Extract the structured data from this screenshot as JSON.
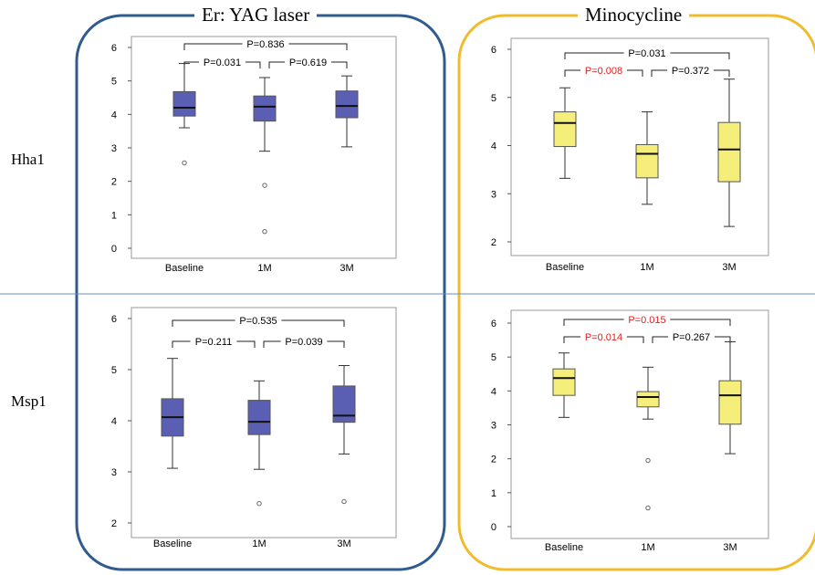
{
  "groups": [
    {
      "title": "Er: YAG laser",
      "border_color": "#2f5b8e",
      "box_color": "#5b5fb4"
    },
    {
      "title": "Minocycline",
      "border_color": "#f0bc2d",
      "box_color": "#f5ee7a"
    }
  ],
  "rows": [
    "Hha1",
    "Msp1"
  ],
  "significant_color": "#e02020",
  "chart_data": [
    {
      "type": "boxplot",
      "group": "Er: YAG laser",
      "row": "Hha1",
      "categories": [
        "Baseline",
        "1M",
        "3M"
      ],
      "yticks": [
        "0",
        "1",
        "2",
        "3",
        "4",
        "5",
        "6"
      ],
      "ylim": [
        0,
        6
      ],
      "boxes": [
        {
          "min": 3.6,
          "q1": 3.95,
          "median": 4.2,
          "q3": 4.68,
          "max": 5.52,
          "outliers": [
            2.55
          ]
        },
        {
          "min": 2.9,
          "q1": 3.8,
          "median": 4.23,
          "q3": 4.55,
          "max": 5.1,
          "outliers": [
            1.88,
            0.5
          ]
        },
        {
          "min": 3.03,
          "q1": 3.9,
          "median": 4.25,
          "q3": 4.7,
          "max": 5.15,
          "outliers": []
        }
      ],
      "comparisons": [
        {
          "from": 0,
          "to": 2,
          "label": "P=0.836",
          "significant": false
        },
        {
          "from": 0,
          "to": 1,
          "label": "P=0.031",
          "significant": false
        },
        {
          "from": 1,
          "to": 2,
          "label": "P=0.619",
          "significant": false
        }
      ]
    },
    {
      "type": "boxplot",
      "group": "Minocycline",
      "row": "Hha1",
      "categories": [
        "Baseline",
        "1M",
        "3M"
      ],
      "yticks": [
        "2",
        "3",
        "4",
        "5",
        "6"
      ],
      "ylim": [
        2,
        6
      ],
      "boxes": [
        {
          "min": 3.32,
          "q1": 3.98,
          "median": 4.47,
          "q3": 4.7,
          "max": 5.2,
          "outliers": []
        },
        {
          "min": 2.78,
          "q1": 3.33,
          "median": 3.83,
          "q3": 4.02,
          "max": 4.7,
          "outliers": []
        },
        {
          "min": 2.32,
          "q1": 3.25,
          "median": 3.92,
          "q3": 4.48,
          "max": 5.38,
          "outliers": []
        }
      ],
      "comparisons": [
        {
          "from": 0,
          "to": 2,
          "label": "P=0.031",
          "significant": false
        },
        {
          "from": 0,
          "to": 1,
          "label": "P=0.008",
          "significant": true
        },
        {
          "from": 1,
          "to": 2,
          "label": "P=0.372",
          "significant": false
        }
      ]
    },
    {
      "type": "boxplot",
      "group": "Er: YAG laser",
      "row": "Msp1",
      "categories": [
        "Baseline",
        "1M",
        "3M"
      ],
      "yticks": [
        "2",
        "3",
        "4",
        "5",
        "6"
      ],
      "ylim": [
        2,
        6
      ],
      "boxes": [
        {
          "min": 3.07,
          "q1": 3.7,
          "median": 4.07,
          "q3": 4.43,
          "max": 5.22,
          "outliers": []
        },
        {
          "min": 3.05,
          "q1": 3.73,
          "median": 3.98,
          "q3": 4.4,
          "max": 4.78,
          "outliers": [
            2.38
          ]
        },
        {
          "min": 3.35,
          "q1": 3.97,
          "median": 4.1,
          "q3": 4.68,
          "max": 5.08,
          "outliers": [
            2.42
          ]
        }
      ],
      "comparisons": [
        {
          "from": 0,
          "to": 2,
          "label": "P=0.535",
          "significant": false
        },
        {
          "from": 0,
          "to": 1,
          "label": "P=0.211",
          "significant": false
        },
        {
          "from": 1,
          "to": 2,
          "label": "P=0.039",
          "significant": false
        }
      ]
    },
    {
      "type": "boxplot",
      "group": "Minocycline",
      "row": "Msp1",
      "categories": [
        "Baseline",
        "1M",
        "3M"
      ],
      "yticks": [
        "0",
        "1",
        "2",
        "3",
        "4",
        "5",
        "6"
      ],
      "ylim": [
        0,
        6
      ],
      "boxes": [
        {
          "min": 3.22,
          "q1": 3.87,
          "median": 4.38,
          "q3": 4.65,
          "max": 5.12,
          "outliers": []
        },
        {
          "min": 3.17,
          "q1": 3.53,
          "median": 3.82,
          "q3": 3.98,
          "max": 4.7,
          "outliers": [
            1.95,
            0.55
          ]
        },
        {
          "min": 2.15,
          "q1": 3.02,
          "median": 3.87,
          "q3": 4.3,
          "max": 5.45,
          "outliers": []
        }
      ],
      "comparisons": [
        {
          "from": 0,
          "to": 2,
          "label": "P=0.015",
          "significant": true
        },
        {
          "from": 0,
          "to": 1,
          "label": "P=0.014",
          "significant": true
        },
        {
          "from": 1,
          "to": 2,
          "label": "P=0.267",
          "significant": false
        }
      ]
    }
  ]
}
